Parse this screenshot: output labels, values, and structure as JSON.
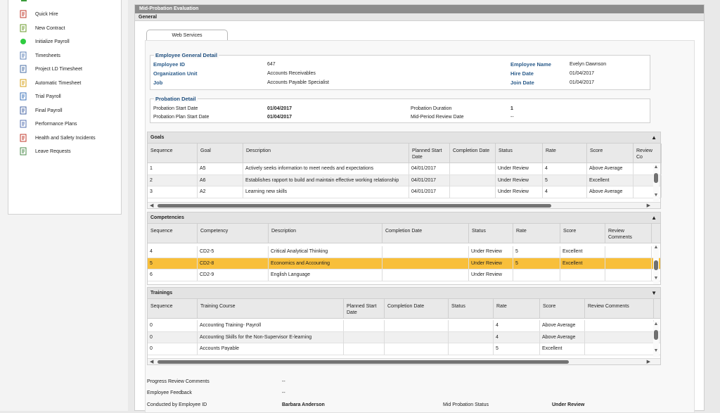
{
  "sidebar": {
    "items": [
      {
        "label": "Quick Hire",
        "icon": "quick-hire-icon"
      },
      {
        "label": "New Contract",
        "icon": "new-contract-icon"
      },
      {
        "label": "Initialize Payroll",
        "icon": "initialize-payroll-icon"
      },
      {
        "label": "Timesheets",
        "icon": "timesheets-icon"
      },
      {
        "label": "Project LD Timesheet",
        "icon": "project-timesheet-icon"
      },
      {
        "label": "Automatic Timesheet",
        "icon": "automatic-timesheet-icon"
      },
      {
        "label": "Trial Payroll",
        "icon": "trial-payroll-icon"
      },
      {
        "label": "Final Payroll",
        "icon": "final-payroll-icon"
      },
      {
        "label": "Performance Plans",
        "icon": "performance-plans-icon"
      },
      {
        "label": "Health and Safety Incidents",
        "icon": "health-safety-icon"
      },
      {
        "label": "Leave Requests",
        "icon": "leave-requests-icon"
      }
    ]
  },
  "header": {
    "title": "Mid-Probation Evaluation",
    "section": "General"
  },
  "tabs": [
    {
      "label": "Web Services"
    }
  ],
  "employee": {
    "legend": "Employee General Detail",
    "id_label": "Employee ID",
    "id_value": "647",
    "org_label": "Organization Unit",
    "org_value": "Accounts Receivables",
    "job_label": "Job",
    "job_value": "Accounts Payable Specialist",
    "name_label": "Employee Name",
    "name_value": "Evelyn Dawnson",
    "hire_label": "Hire Date",
    "hire_value": "01/04/2017",
    "join_label": "Join Date",
    "join_value": "01/04/2017"
  },
  "probation": {
    "legend": "Probation Detail",
    "start_label": "Probation Start Date",
    "start_value": "01/04/2017",
    "plan_label": "Probation Plan Start Date",
    "plan_value": "01/04/2017",
    "duration_label": "Probation Duration",
    "duration_value": "1",
    "review_label": "Mid-Period Review Date",
    "review_value": "--"
  },
  "goals": {
    "title": "Goals",
    "columns": [
      "Sequence",
      "Goal",
      "Description",
      "Planned Start Date",
      "Completion Date",
      "Status",
      "Rate",
      "Score",
      "Review Co"
    ],
    "rows": [
      [
        "1",
        "A5",
        "Actively seeks information to meet needs and expectations",
        "04/01/2017",
        "",
        "Under Review",
        "4",
        "Above Average",
        ""
      ],
      [
        "2",
        "A6",
        "Establishes rapport to build and maintain effective working relationship",
        "04/01/2017",
        "",
        "Under Review",
        "5",
        "Excellent",
        ""
      ],
      [
        "3",
        "A2",
        "Learning new skills",
        "04/01/2017",
        "",
        "Under Review",
        "4",
        "Above Average",
        ""
      ]
    ]
  },
  "competencies": {
    "title": "Competencies",
    "columns": [
      "Sequence",
      "Competency",
      "Description",
      "Completion Date",
      "Status",
      "Rate",
      "Score",
      "Review Comments"
    ],
    "rows": [
      [
        "4",
        "CD2-5",
        "Critical Analytical Thinking",
        "",
        "Under Review",
        "5",
        "Excellent",
        ""
      ],
      [
        "5",
        "CD2-8",
        "Economics and Accounting",
        "",
        "Under Review",
        "5",
        "Excellent",
        ""
      ],
      [
        "6",
        "CD2-9",
        "English Language",
        "",
        "Under Review",
        "",
        "",
        ""
      ]
    ]
  },
  "trainings": {
    "title": "Trainings",
    "columns": [
      "Sequence",
      "Training Course",
      "Planned Start Date",
      "Completion Date",
      "Status",
      "Rate",
      "Score",
      "Review Comments"
    ],
    "rows": [
      [
        "0",
        "Accounting Training- Payroll",
        "",
        "",
        "",
        "4",
        "Above Average",
        ""
      ],
      [
        "0",
        "Accounting Skills for the Non-Supervisor E-learning",
        "",
        "",
        "",
        "4",
        "Above Average",
        ""
      ],
      [
        "0",
        "Accounts Payable",
        "",
        "",
        "",
        "5",
        "Excellent",
        ""
      ]
    ]
  },
  "footer": {
    "progress_label": "Progress Review Comments",
    "progress_value": "--",
    "feedback_label": "Employee Feedback",
    "feedback_value": "--",
    "conducted_label": "Conducted by Employee ID",
    "conducted_value": "Barbara Anderson",
    "status_label": "Mid Probation Status",
    "status_value": "Under Review"
  },
  "colors": {
    "selected_row": "#f8bf3a",
    "header_bar": "#8c8c8c",
    "label_blue": "#2a5b8a"
  }
}
